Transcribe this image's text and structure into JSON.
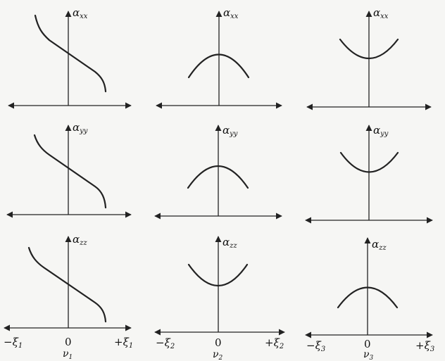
{
  "panels": [
    {
      "label": "α",
      "sub": "xx",
      "shape": "decreasing"
    },
    {
      "label": "α",
      "sub": "xx",
      "shape": "cap"
    },
    {
      "label": "α",
      "sub": "xx",
      "shape": "cup"
    },
    {
      "label": "α",
      "sub": "yy",
      "shape": "decreasing"
    },
    {
      "label": "α",
      "sub": "yy",
      "shape": "cap"
    },
    {
      "label": "α",
      "sub": "yy",
      "shape": "cup"
    },
    {
      "label": "α",
      "sub": "zz",
      "shape": "decreasing"
    },
    {
      "label": "α",
      "sub": "zz",
      "shape": "cup"
    },
    {
      "label": "α",
      "sub": "zz",
      "shape": "cap"
    }
  ],
  "x_ticks": [
    {
      "left": "−ξ",
      "left_sub": "1",
      "zero": "0",
      "right": "+ξ",
      "right_sub": "1",
      "mode": "ν",
      "mode_sub": "1"
    },
    {
      "left": "−ξ",
      "left_sub": "2",
      "zero": "0",
      "right": "+ξ",
      "right_sub": "2",
      "mode": "ν",
      "mode_sub": "2"
    },
    {
      "left": "−ξ",
      "left_sub": "3",
      "zero": "0",
      "right": "+ξ",
      "right_sub": "3",
      "mode": "ν",
      "mode_sub": "3"
    }
  ]
}
